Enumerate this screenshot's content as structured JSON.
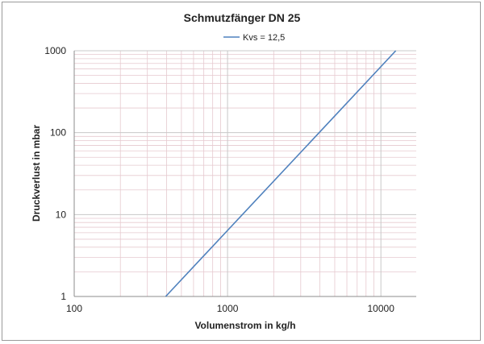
{
  "chart_data": {
    "type": "line",
    "title": "Schmutzfänger DN 25",
    "xlabel": "Volumenstrom in kg/h",
    "ylabel": "Druckverlust in mbar",
    "x_scale": "log",
    "y_scale": "log",
    "xlim": [
      100,
      17000
    ],
    "ylim": [
      1,
      1000
    ],
    "x_ticks": [
      "100",
      "1000",
      "10000"
    ],
    "y_ticks": [
      "1",
      "10",
      "100",
      "1000"
    ],
    "grid": true,
    "legend_position": "top-center",
    "series": [
      {
        "name": "Kvs = 12,5",
        "color": "#4f81bd",
        "x": [
          395,
          1000,
          3953,
          12500
        ],
        "y": [
          1,
          6.4,
          100,
          1000
        ]
      }
    ]
  },
  "colors": {
    "major_grid": "#c8c8c8",
    "minor_grid": "#e6c9cf",
    "axis": "#8c8c8c"
  }
}
